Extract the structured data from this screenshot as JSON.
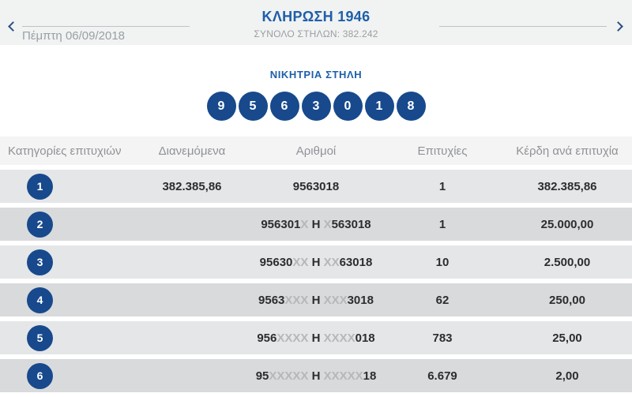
{
  "nav": {
    "date": "Πέμπτη 06/09/2018"
  },
  "header": {
    "title": "ΚΛΗΡΩΣΗ 1946",
    "subtitle": "ΣΥΝΟΛΟ ΣΤΗΛΩΝ: 382.242"
  },
  "winning": {
    "label": "ΝΙΚΗΤΡΙΑ ΣΤΗΛΗ",
    "numbers": [
      "9",
      "5",
      "6",
      "3",
      "0",
      "1",
      "8"
    ]
  },
  "table": {
    "headers": {
      "category": "Κατηγορίες επιτυχιών",
      "distributed": "Διανεμόμενα",
      "numbers": "Αριθμοί",
      "hits": "Επιτυχίες",
      "prize": "Κέρδη ανά επιτυχία"
    },
    "rows": [
      {
        "category": "1",
        "distributed": "382.385,86",
        "numbers": [
          {
            "t": "9563018",
            "muted": false
          }
        ],
        "hits": "1",
        "prize": "382.385,86"
      },
      {
        "category": "2",
        "distributed": "",
        "numbers": [
          {
            "t": "956301",
            "muted": false
          },
          {
            "t": "X",
            "muted": true
          },
          {
            "t": " Η ",
            "muted": false
          },
          {
            "t": "X",
            "muted": true
          },
          {
            "t": "563018",
            "muted": false
          }
        ],
        "hits": "1",
        "prize": "25.000,00"
      },
      {
        "category": "3",
        "distributed": "",
        "numbers": [
          {
            "t": "95630",
            "muted": false
          },
          {
            "t": "XX",
            "muted": true
          },
          {
            "t": " Η ",
            "muted": false
          },
          {
            "t": "XX",
            "muted": true
          },
          {
            "t": "63018",
            "muted": false
          }
        ],
        "hits": "10",
        "prize": "2.500,00"
      },
      {
        "category": "4",
        "distributed": "",
        "numbers": [
          {
            "t": "9563",
            "muted": false
          },
          {
            "t": "XXX",
            "muted": true
          },
          {
            "t": " Η ",
            "muted": false
          },
          {
            "t": "XXX",
            "muted": true
          },
          {
            "t": "3018",
            "muted": false
          }
        ],
        "hits": "62",
        "prize": "250,00"
      },
      {
        "category": "5",
        "distributed": "",
        "numbers": [
          {
            "t": "956",
            "muted": false
          },
          {
            "t": "XXXX",
            "muted": true
          },
          {
            "t": " Η ",
            "muted": false
          },
          {
            "t": "XXXX",
            "muted": true
          },
          {
            "t": "018",
            "muted": false
          }
        ],
        "hits": "783",
        "prize": "25,00"
      },
      {
        "category": "6",
        "distributed": "",
        "numbers": [
          {
            "t": "95",
            "muted": false
          },
          {
            "t": "XXXXX",
            "muted": true
          },
          {
            "t": " Η ",
            "muted": false
          },
          {
            "t": "XXXXX",
            "muted": true
          },
          {
            "t": "18",
            "muted": false
          }
        ],
        "hits": "6.679",
        "prize": "2,00"
      }
    ]
  },
  "colors": {
    "accent_blue": "#1d5fa9",
    "circle_navy": "#17498c",
    "row_odd": "#e4e6e7",
    "row_even": "#d8dadc",
    "muted_x": "#b5b7ba",
    "header_strip": "#f1f2f2",
    "table_header_bg": "#f4f4f5"
  }
}
